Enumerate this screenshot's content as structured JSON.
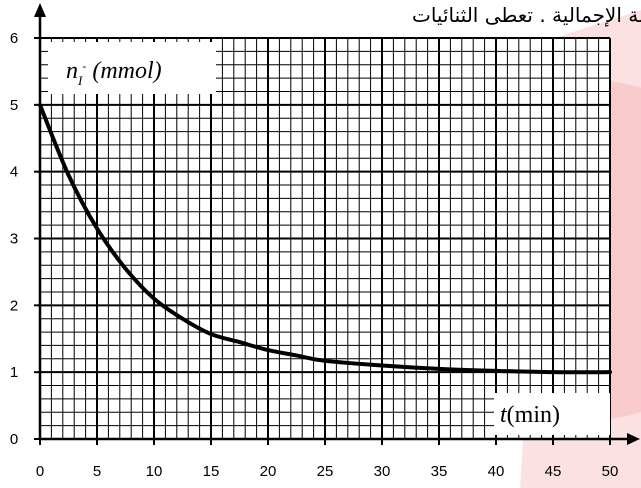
{
  "header_text": "عادلة الإجمالية . تعطى الثنائيات",
  "chart_data": {
    "type": "line",
    "ylabel_var": "n",
    "ylabel_sub": "I",
    "ylabel_sup": "-",
    "ylabel_unit": "(mmol)",
    "xlabel_var": "t",
    "xlabel_unit": "(min)",
    "xlim": [
      0,
      50
    ],
    "ylim": [
      0,
      6
    ],
    "x_ticks": [
      0,
      5,
      10,
      15,
      20,
      25,
      30,
      35,
      40,
      45,
      50
    ],
    "y_ticks": [
      0,
      1,
      2,
      3,
      4,
      5,
      6
    ],
    "grid": true,
    "minor_grid_step_x": 1,
    "minor_grid_step_y": 0.2,
    "series": [
      {
        "x": [
          0,
          2.5,
          5,
          7.5,
          10,
          12.5,
          15,
          17.5,
          20,
          22.5,
          25,
          30,
          35,
          40,
          45,
          50
        ],
        "values": [
          5.0,
          3.95,
          3.15,
          2.55,
          2.1,
          1.8,
          1.57,
          1.45,
          1.33,
          1.25,
          1.17,
          1.1,
          1.05,
          1.02,
          1.0,
          1.0
        ]
      }
    ],
    "background_accent": "#e8080f"
  }
}
